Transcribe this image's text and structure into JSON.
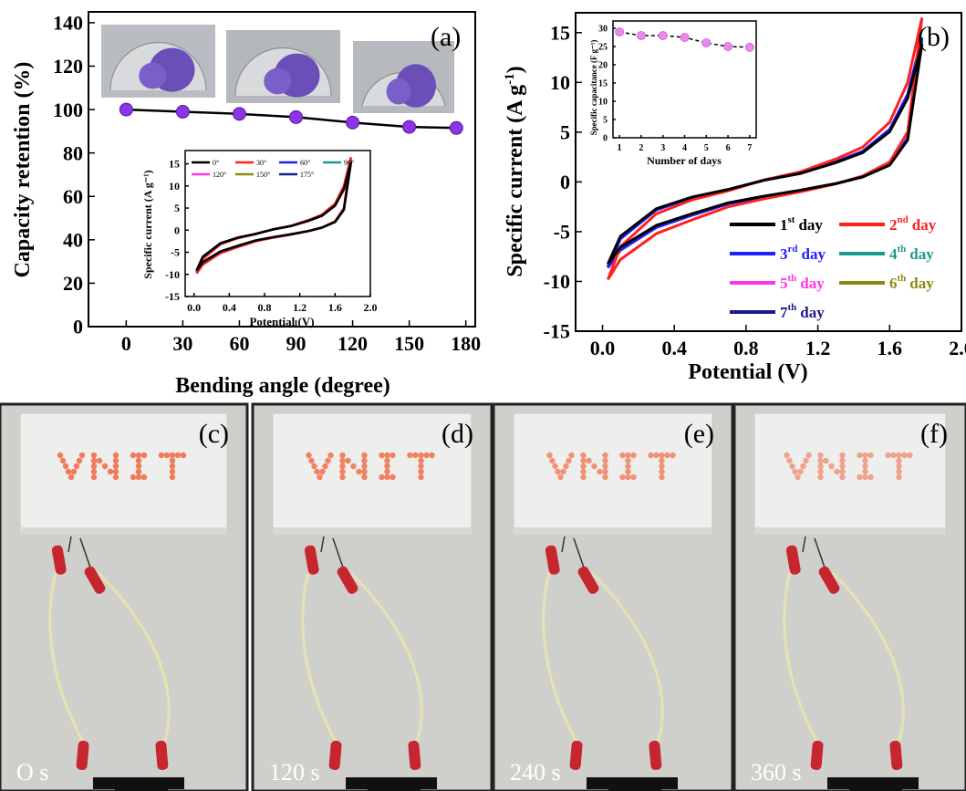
{
  "chart_data": [
    {
      "panel": "(a)",
      "type": "scatter",
      "xlabel": "Bending angle (degree)",
      "ylabel": "Capacity retention (%)",
      "x": [
        0,
        30,
        60,
        90,
        120,
        150,
        175
      ],
      "y": [
        100,
        99,
        98,
        96.5,
        94,
        92,
        91.5
      ],
      "xlim": [
        -20,
        185
      ],
      "ylim": [
        0,
        145
      ],
      "xticks": [
        "0",
        "30",
        "60",
        "90",
        "120",
        "150",
        "180"
      ],
      "yticks": [
        "0",
        "20",
        "40",
        "60",
        "80",
        "100",
        "120",
        "140"
      ],
      "marker_color": "#8a35e6",
      "inset": {
        "type": "line",
        "xlabel": "Potential (V)",
        "ylabel": "Specific current  (A g⁻¹)",
        "xlim": [
          -0.1,
          2.0
        ],
        "ylim": [
          -15,
          18
        ],
        "xticks": [
          "0.0",
          "0.4",
          "0.8",
          "1.2",
          "1.6",
          "2.0"
        ],
        "yticks": [
          "-15",
          "-10",
          "-5",
          "0",
          "5",
          "10",
          "15"
        ],
        "series": [
          {
            "name": "0°",
            "color": "#000000",
            "scale": 0.93
          },
          {
            "name": "30°",
            "color": "#ff2020",
            "scale": 1.0
          },
          {
            "name": "60°",
            "color": "#1f1fff",
            "scale": 0.97
          },
          {
            "name": "90°",
            "color": "#1a9a8a",
            "scale": 0.96
          },
          {
            "name": "120°",
            "color": "#ff33ee",
            "scale": 0.95
          },
          {
            "name": "150°",
            "color": "#8a8a10",
            "scale": 0.94
          },
          {
            "name": "175°",
            "color": "#1a1a8a",
            "scale": 0.92
          }
        ]
      }
    },
    {
      "panel": "(b)",
      "type": "line",
      "xlabel": "Potential (V)",
      "ylabel": "Specific current (A g⁻¹)",
      "xlim": [
        -0.15,
        2.0
      ],
      "ylim": [
        -15,
        17
      ],
      "xticks": [
        "0.0",
        "0.4",
        "0.8",
        "1.2",
        "1.6",
        "2.0"
      ],
      "yticks": [
        "-15",
        "-10",
        "-5",
        "0",
        "5",
        "10",
        "15"
      ],
      "cv_points": {
        "potential": [
          0.03,
          0.1,
          0.3,
          0.5,
          0.7,
          0.9,
          1.1,
          1.3,
          1.45,
          1.6,
          1.7,
          1.78
        ],
        "charge_current": [
          -9.8,
          -6.5,
          -3.2,
          -1.8,
          -0.9,
          0.2,
          1.0,
          2.3,
          3.5,
          6.0,
          10.0,
          16.5
        ],
        "discharge_current": [
          -9.8,
          -7.8,
          -5.2,
          -3.8,
          -2.5,
          -1.7,
          -1.0,
          -0.2,
          0.6,
          2.0,
          5.0,
          16.5
        ]
      },
      "series": [
        {
          "ordinal": "1",
          "suffix": "st",
          "word": "day",
          "color": "#000000",
          "scale": 0.84
        },
        {
          "ordinal": "2",
          "suffix": "nd",
          "word": "day",
          "color": "#ff2020",
          "scale": 1.0
        },
        {
          "ordinal": "3",
          "suffix": "rd",
          "word": "day",
          "color": "#1f1fff",
          "scale": 0.88
        },
        {
          "ordinal": "4",
          "suffix": "th",
          "word": "day",
          "color": "#1a9a8a",
          "scale": 0.87
        },
        {
          "ordinal": "5",
          "suffix": "th",
          "word": "day",
          "color": "#ff33ee",
          "scale": 0.86
        },
        {
          "ordinal": "6",
          "suffix": "th",
          "word": "day",
          "color": "#8a8a10",
          "scale": 0.86
        },
        {
          "ordinal": "7",
          "suffix": "th",
          "word": "day",
          "color": "#1a1a8a",
          "scale": 0.86
        }
      ],
      "inset": {
        "type": "scatter",
        "xlabel": "Number of days",
        "ylabel": "Specific capacitance (F g⁻¹)",
        "x": [
          1,
          2,
          3,
          4,
          5,
          6,
          7
        ],
        "y": [
          29,
          28,
          28,
          27.5,
          26,
          25,
          24.8
        ],
        "xlim": [
          0.7,
          7.3
        ],
        "ylim": [
          0,
          32
        ],
        "xticks": [
          "1",
          "2",
          "3",
          "4",
          "5",
          "6",
          "7"
        ],
        "yticks": [
          "0",
          "5",
          "10",
          "15",
          "20",
          "25",
          "30"
        ],
        "marker_color": "#ee88ee"
      }
    }
  ],
  "photos": [
    {
      "label": "(c)",
      "time": "O s",
      "lit": 1.0
    },
    {
      "label": "(d)",
      "time": "120 s",
      "lit": 0.95
    },
    {
      "label": "(e)",
      "time": "240 s",
      "lit": 0.8
    },
    {
      "label": "(f)",
      "time": "360 s",
      "lit": 0.65
    }
  ],
  "display_text": "VNIT",
  "colors": {
    "led": "#f07a5a",
    "clip": "#c8262e",
    "board": "#eeeeec",
    "wall": "#cfd0cc"
  }
}
